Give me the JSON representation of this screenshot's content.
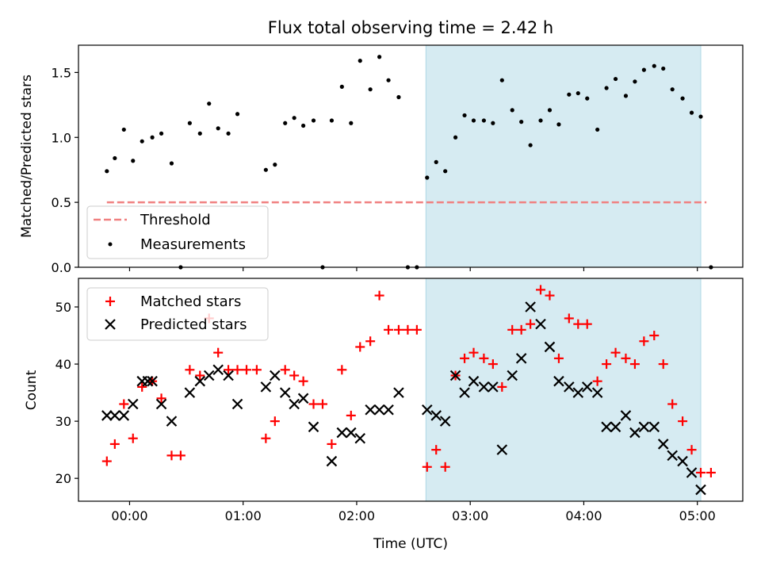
{
  "colors": {
    "threshold": "#f08080",
    "highlight": "#add8e6",
    "matched": "#ff0000",
    "predicted": "#000000",
    "measurement": "#000000"
  },
  "chart_data": [
    {
      "type": "scatter",
      "title": "Flux total observing time = 2.42 h",
      "xlabel": "",
      "ylabel": "Matched/Predicted stars",
      "xlim_hours": [
        -0.45,
        5.4
      ],
      "ylim": [
        0,
        1.71
      ],
      "yticks": [
        0.0,
        0.5,
        1.0,
        1.5
      ],
      "highlight_span_hours": [
        2.61,
        5.03
      ],
      "threshold": {
        "name": "Threshold",
        "value": 0.5,
        "x_range_hours": [
          -0.2,
          5.08
        ]
      },
      "legend": [
        "Threshold",
        "Measurements"
      ],
      "legend_position": "lower-left",
      "series": [
        {
          "name": "Measurements",
          "x": [
            -0.2,
            -0.13,
            -0.05,
            0.03,
            0.11,
            0.2,
            0.28,
            0.37,
            0.45,
            0.53,
            0.62,
            0.7,
            0.78,
            0.87,
            0.95,
            1.2,
            1.28,
            1.37,
            1.45,
            1.53,
            1.62,
            1.7,
            1.78,
            1.87,
            1.95,
            2.03,
            2.12,
            2.2,
            2.28,
            2.37,
            2.45,
            2.53,
            2.62,
            2.7,
            2.78,
            2.87,
            2.95,
            3.03,
            3.12,
            3.2,
            3.28,
            3.37,
            3.45,
            3.53,
            3.62,
            3.7,
            3.78,
            3.87,
            3.95,
            4.03,
            4.12,
            4.2,
            4.28,
            4.37,
            4.45,
            4.53,
            4.62,
            4.7,
            4.78,
            4.87,
            4.95,
            5.03,
            5.12
          ],
          "y": [
            0.74,
            0.84,
            1.06,
            0.82,
            0.97,
            1.0,
            1.03,
            0.8,
            0,
            1.11,
            1.03,
            1.26,
            1.07,
            1.03,
            1.18,
            0.75,
            0.79,
            1.11,
            1.15,
            1.09,
            1.13,
            0,
            1.13,
            1.39,
            1.11,
            1.59,
            1.37,
            1.62,
            1.44,
            1.31,
            0,
            0,
            0.69,
            0.81,
            0.74,
            1.0,
            1.17,
            1.13,
            1.13,
            1.11,
            1.44,
            1.21,
            1.12,
            0.94,
            1.13,
            1.21,
            1.1,
            1.33,
            1.34,
            1.3,
            1.06,
            1.38,
            1.45,
            1.32,
            1.43,
            1.52,
            1.55,
            1.53,
            1.37,
            1.3,
            1.19,
            1.16,
            0
          ]
        }
      ]
    },
    {
      "type": "scatter",
      "title": "",
      "xlabel": "Time (UTC)",
      "ylabel": "Count",
      "xlim_hours": [
        -0.45,
        5.4
      ],
      "ylim": [
        16,
        55
      ],
      "yticks": [
        20,
        30,
        40,
        50
      ],
      "xticks_hours": [
        0,
        1,
        2,
        3,
        4,
        5
      ],
      "xtick_labels": [
        "00:00",
        "01:00",
        "02:00",
        "03:00",
        "04:00",
        "05:00"
      ],
      "highlight_span_hours": [
        2.61,
        5.03
      ],
      "legend": [
        "Matched stars",
        "Predicted stars"
      ],
      "legend_position": "upper-left",
      "series": [
        {
          "name": "Matched stars",
          "marker": "plus",
          "x": [
            -0.2,
            -0.13,
            -0.05,
            0.03,
            0.11,
            0.2,
            0.28,
            0.37,
            0.45,
            0.53,
            0.62,
            0.7,
            0.78,
            0.87,
            0.95,
            1.03,
            1.12,
            1.2,
            1.28,
            1.37,
            1.45,
            1.53,
            1.62,
            1.7,
            1.78,
            1.87,
            1.95,
            2.03,
            2.12,
            2.2,
            2.28,
            2.37,
            2.45,
            2.53,
            2.62,
            2.7,
            2.78,
            2.87,
            2.95,
            3.03,
            3.12,
            3.2,
            3.28,
            3.37,
            3.45,
            3.53,
            3.62,
            3.7,
            3.78,
            3.87,
            3.95,
            4.03,
            4.12,
            4.2,
            4.28,
            4.37,
            4.45,
            4.53,
            4.62,
            4.7,
            4.78,
            4.87,
            4.95,
            5.03,
            5.12
          ],
          "y": [
            23,
            26,
            33,
            27,
            36,
            37,
            34,
            24,
            24,
            39,
            38,
            48,
            42,
            39,
            39,
            39,
            39,
            27,
            30,
            39,
            38,
            37,
            33,
            33,
            26,
            39,
            31,
            43,
            44,
            52,
            46,
            46,
            46,
            46,
            22,
            25,
            22,
            38,
            41,
            42,
            41,
            40,
            36,
            46,
            46,
            47,
            53,
            52,
            41,
            48,
            47,
            47,
            37,
            40,
            42,
            41,
            40,
            44,
            45,
            40,
            33,
            30,
            25,
            21,
            21
          ]
        },
        {
          "name": "Predicted stars",
          "marker": "x",
          "x": [
            -0.2,
            -0.13,
            -0.05,
            0.03,
            0.11,
            0.16,
            0.2,
            0.28,
            0.37,
            0.53,
            0.62,
            0.7,
            0.78,
            0.87,
            0.95,
            1.2,
            1.28,
            1.37,
            1.45,
            1.53,
            1.62,
            1.78,
            1.87,
            1.95,
            2.03,
            2.12,
            2.2,
            2.28,
            2.37,
            2.62,
            2.7,
            2.78,
            2.87,
            2.95,
            3.03,
            3.12,
            3.2,
            3.28,
            3.37,
            3.45,
            3.53,
            3.62,
            3.7,
            3.78,
            3.87,
            3.95,
            4.03,
            4.12,
            4.2,
            4.28,
            4.37,
            4.45,
            4.53,
            4.62,
            4.7,
            4.78,
            4.87,
            4.95,
            5.03
          ],
          "y": [
            31,
            31,
            31,
            33,
            37,
            37,
            37,
            33,
            30,
            35,
            37,
            38,
            39,
            38,
            33,
            36,
            38,
            35,
            33,
            34,
            29,
            23,
            28,
            28,
            27,
            32,
            32,
            32,
            35,
            32,
            31,
            30,
            38,
            35,
            37,
            36,
            36,
            25,
            38,
            41,
            50,
            47,
            43,
            37,
            36,
            35,
            36,
            35,
            29,
            29,
            31,
            28,
            29,
            29,
            26,
            24,
            23,
            21,
            18
          ]
        }
      ]
    }
  ]
}
